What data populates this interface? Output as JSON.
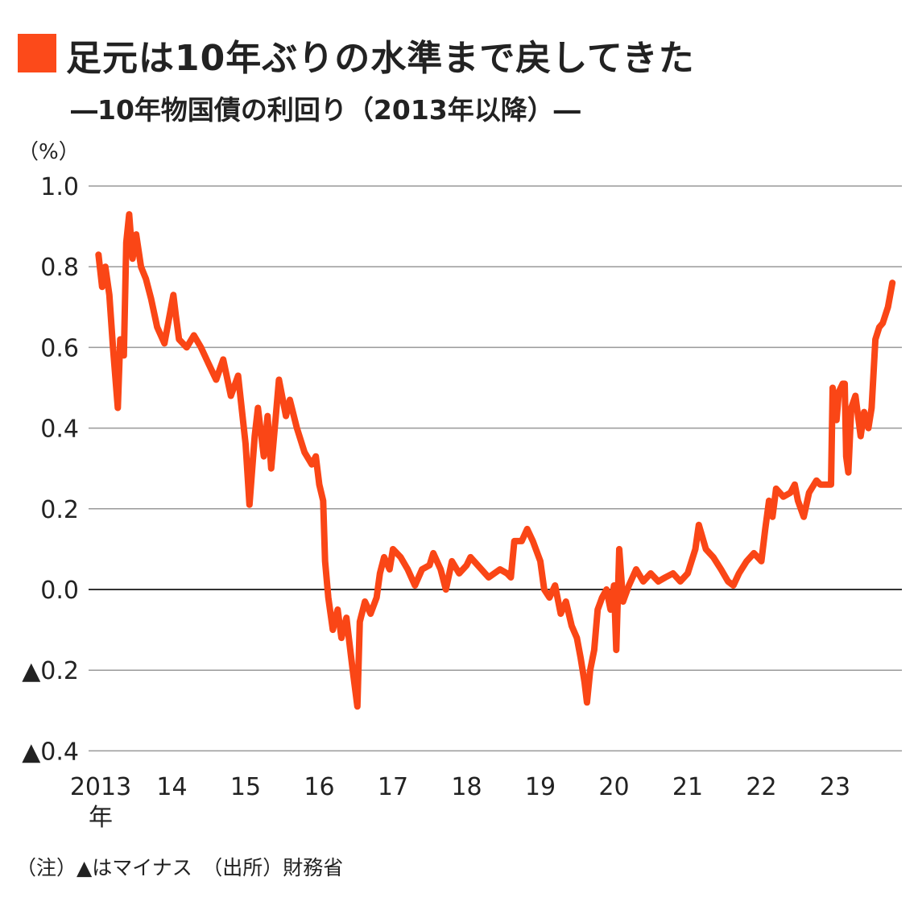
{
  "header": {
    "title": "足元は10年ぶりの水準まで戻してきた",
    "subtitle": "―10年物国債の利回り（2013年以降）―",
    "accent_color": "#fc4a1a"
  },
  "footnote": "（注）▲はマイナス　（出所）財務省",
  "chart_data": {
    "type": "line",
    "title": "10年物国債の利回り（2013年以降）",
    "ylabel": "（%）",
    "xlabel": "",
    "ylim": [
      -0.4,
      1.0
    ],
    "yticks": [
      1.0,
      0.8,
      0.6,
      0.4,
      0.2,
      0.0,
      -0.2,
      -0.4
    ],
    "ytick_labels": [
      "1.0",
      "0.8",
      "0.6",
      "0.4",
      "0.2",
      "0.0",
      "▲0.2",
      "▲0.4"
    ],
    "xticks": [
      "2013",
      "2014",
      "2015",
      "2016",
      "2017",
      "2018",
      "2019",
      "2020",
      "2021",
      "2022",
      "2023"
    ],
    "xtick_labels": [
      "2013",
      "14",
      "15",
      "16",
      "17",
      "18",
      "19",
      "20",
      "21",
      "22",
      "23"
    ],
    "xtick_first_suffix": "年",
    "grid": true,
    "line_color": "#fa4616",
    "series": [
      {
        "points": [
          [
            "2013-01-02",
            0.83
          ],
          [
            "2013-01-20",
            0.75
          ],
          [
            "2013-02-05",
            0.8
          ],
          [
            "2013-02-25",
            0.73
          ],
          [
            "2013-03-15",
            0.6
          ],
          [
            "2013-04-08",
            0.45
          ],
          [
            "2013-04-20",
            0.62
          ],
          [
            "2013-05-08",
            0.58
          ],
          [
            "2013-05-20",
            0.86
          ],
          [
            "2013-06-03",
            0.93
          ],
          [
            "2013-06-20",
            0.82
          ],
          [
            "2013-07-08",
            0.88
          ],
          [
            "2013-08-01",
            0.8
          ],
          [
            "2013-08-25",
            0.77
          ],
          [
            "2013-09-20",
            0.72
          ],
          [
            "2013-10-20",
            0.65
          ],
          [
            "2013-11-25",
            0.61
          ],
          [
            "2014-01-08",
            0.73
          ],
          [
            "2014-01-20",
            0.68
          ],
          [
            "2014-02-05",
            0.62
          ],
          [
            "2014-03-15",
            0.6
          ],
          [
            "2014-04-20",
            0.63
          ],
          [
            "2014-05-25",
            0.6
          ],
          [
            "2014-07-01",
            0.56
          ],
          [
            "2014-08-08",
            0.52
          ],
          [
            "2014-09-12",
            0.57
          ],
          [
            "2014-10-20",
            0.48
          ],
          [
            "2014-11-25",
            0.53
          ],
          [
            "2015-01-01",
            0.36
          ],
          [
            "2015-01-20",
            0.21
          ],
          [
            "2015-02-15",
            0.38
          ],
          [
            "2015-03-03",
            0.45
          ],
          [
            "2015-04-01",
            0.33
          ],
          [
            "2015-04-20",
            0.43
          ],
          [
            "2015-05-08",
            0.3
          ],
          [
            "2015-06-03",
            0.45
          ],
          [
            "2015-06-15",
            0.52
          ],
          [
            "2015-07-20",
            0.43
          ],
          [
            "2015-08-08",
            0.47
          ],
          [
            "2015-09-12",
            0.4
          ],
          [
            "2015-10-20",
            0.34
          ],
          [
            "2015-11-25",
            0.31
          ],
          [
            "2015-12-15",
            0.33
          ],
          [
            "2016-01-01",
            0.26
          ],
          [
            "2016-01-20",
            0.22
          ],
          [
            "2016-01-30",
            0.07
          ],
          [
            "2016-02-15",
            -0.02
          ],
          [
            "2016-03-08",
            -0.1
          ],
          [
            "2016-04-01",
            -0.05
          ],
          [
            "2016-04-20",
            -0.12
          ],
          [
            "2016-05-15",
            -0.07
          ],
          [
            "2016-06-15",
            -0.2
          ],
          [
            "2016-07-08",
            -0.29
          ],
          [
            "2016-07-20",
            -0.08
          ],
          [
            "2016-08-15",
            -0.03
          ],
          [
            "2016-09-12",
            -0.06
          ],
          [
            "2016-10-12",
            -0.02
          ],
          [
            "2016-10-28",
            0.04
          ],
          [
            "2016-11-18",
            0.08
          ],
          [
            "2016-12-15",
            0.05
          ],
          [
            "2017-01-01",
            0.1
          ],
          [
            "2017-02-08",
            0.08
          ],
          [
            "2017-03-15",
            0.05
          ],
          [
            "2017-04-20",
            0.01
          ],
          [
            "2017-05-25",
            0.05
          ],
          [
            "2017-07-01",
            0.06
          ],
          [
            "2017-07-20",
            0.09
          ],
          [
            "2017-08-25",
            0.05
          ],
          [
            "2017-09-20",
            0.0
          ],
          [
            "2017-10-20",
            0.07
          ],
          [
            "2017-11-25",
            0.04
          ],
          [
            "2018-01-01",
            0.06
          ],
          [
            "2018-01-20",
            0.08
          ],
          [
            "2018-02-25",
            0.06
          ],
          [
            "2018-04-20",
            0.03
          ],
          [
            "2018-06-15",
            0.05
          ],
          [
            "2018-07-20",
            0.04
          ],
          [
            "2018-08-08",
            0.03
          ],
          [
            "2018-08-25",
            0.12
          ],
          [
            "2018-10-01",
            0.12
          ],
          [
            "2018-10-28",
            0.15
          ],
          [
            "2018-11-25",
            0.12
          ],
          [
            "2019-01-01",
            0.07
          ],
          [
            "2019-01-20",
            0.0
          ],
          [
            "2019-02-15",
            -0.02
          ],
          [
            "2019-03-15",
            0.01
          ],
          [
            "2019-04-12",
            -0.06
          ],
          [
            "2019-05-08",
            -0.03
          ],
          [
            "2019-06-05",
            -0.09
          ],
          [
            "2019-07-01",
            -0.12
          ],
          [
            "2019-07-20",
            -0.17
          ],
          [
            "2019-08-08",
            -0.23
          ],
          [
            "2019-08-20",
            -0.28
          ],
          [
            "2019-09-05",
            -0.2
          ],
          [
            "2019-09-25",
            -0.15
          ],
          [
            "2019-10-12",
            -0.05
          ],
          [
            "2019-11-03",
            -0.02
          ],
          [
            "2019-11-25",
            0.0
          ],
          [
            "2019-12-15",
            -0.05
          ],
          [
            "2020-01-01",
            0.01
          ],
          [
            "2020-01-12",
            -0.15
          ],
          [
            "2020-01-27",
            0.1
          ],
          [
            "2020-02-15",
            -0.03
          ],
          [
            "2020-03-15",
            0.01
          ],
          [
            "2020-04-20",
            0.05
          ],
          [
            "2020-05-25",
            0.02
          ],
          [
            "2020-07-01",
            0.04
          ],
          [
            "2020-08-08",
            0.02
          ],
          [
            "2020-09-12",
            0.03
          ],
          [
            "2020-10-20",
            0.04
          ],
          [
            "2020-11-25",
            0.02
          ],
          [
            "2021-01-01",
            0.04
          ],
          [
            "2021-02-08",
            0.1
          ],
          [
            "2021-02-25",
            0.16
          ],
          [
            "2021-04-01",
            0.1
          ],
          [
            "2021-05-08",
            0.08
          ],
          [
            "2021-06-15",
            0.05
          ],
          [
            "2021-07-20",
            0.02
          ],
          [
            "2021-08-15",
            0.01
          ],
          [
            "2021-09-12",
            0.04
          ],
          [
            "2021-10-20",
            0.07
          ],
          [
            "2021-11-25",
            0.09
          ],
          [
            "2022-01-01",
            0.07
          ],
          [
            "2022-01-20",
            0.15
          ],
          [
            "2022-02-08",
            0.22
          ],
          [
            "2022-02-25",
            0.18
          ],
          [
            "2022-03-15",
            0.25
          ],
          [
            "2022-04-20",
            0.23
          ],
          [
            "2022-05-25",
            0.24
          ],
          [
            "2022-06-15",
            0.26
          ],
          [
            "2022-07-01",
            0.22
          ],
          [
            "2022-07-30",
            0.18
          ],
          [
            "2022-08-25",
            0.24
          ],
          [
            "2022-10-01",
            0.27
          ],
          [
            "2022-10-20",
            0.26
          ],
          [
            "2022-11-18",
            0.26
          ],
          [
            "2022-12-12",
            0.26
          ],
          [
            "2022-12-20",
            0.5
          ],
          [
            "2023-01-08",
            0.42
          ],
          [
            "2023-01-20",
            0.49
          ],
          [
            "2023-02-08",
            0.51
          ],
          [
            "2023-02-18",
            0.51
          ],
          [
            "2023-02-25",
            0.33
          ],
          [
            "2023-03-08",
            0.29
          ],
          [
            "2023-03-22",
            0.45
          ],
          [
            "2023-04-12",
            0.48
          ],
          [
            "2023-05-08",
            0.38
          ],
          [
            "2023-05-25",
            0.44
          ],
          [
            "2023-06-15",
            0.4
          ],
          [
            "2023-07-01",
            0.45
          ],
          [
            "2023-07-20",
            0.62
          ],
          [
            "2023-08-08",
            0.65
          ],
          [
            "2023-08-25",
            0.66
          ],
          [
            "2023-09-20",
            0.7
          ],
          [
            "2023-10-12",
            0.76
          ]
        ]
      }
    ]
  }
}
